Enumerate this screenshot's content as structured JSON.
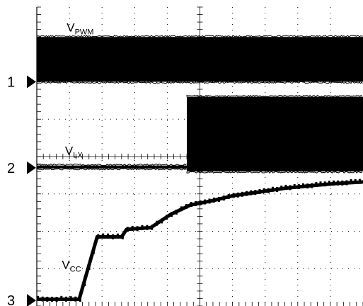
{
  "chart_data": {
    "type": "line",
    "title": "",
    "xlabel": "",
    "ylabel": "",
    "grid": true,
    "grid_style": "dotted",
    "divisions": {
      "x": 10,
      "y": 8
    },
    "xlim": [
      0,
      10
    ],
    "ylim": [
      0,
      8
    ],
    "colors": {
      "trace": "#000000",
      "grid": "#000000",
      "background": "#ffffff"
    },
    "channels": [
      {
        "number": "1",
        "ground_div": 6.0
      },
      {
        "number": "2",
        "ground_div": 3.7
      },
      {
        "number": "3",
        "ground_div": 0.15
      }
    ],
    "series": [
      {
        "name": "PWM",
        "label_main": "V",
        "label_sub": "PWM",
        "style": "switching",
        "segments": [
          {
            "x_start": 0,
            "x_end": 10,
            "low": 6.0,
            "high": 7.2
          }
        ]
      },
      {
        "name": "LX",
        "label_main": "V",
        "label_sub": "LX",
        "style": "switching",
        "baseline": 3.7,
        "segments": [
          {
            "x_start": 0,
            "x_end": 4.6,
            "low": 3.68,
            "high": 3.76
          },
          {
            "x_start": 4.6,
            "x_end": 10,
            "low": 3.6,
            "high": 5.6
          }
        ]
      },
      {
        "name": "CC",
        "label_main": "V",
        "label_sub": "CC",
        "style": "line",
        "x": [
          0,
          1.3,
          1.85,
          2.6,
          2.75,
          3.5,
          4.1,
          4.7,
          5.4,
          6.0,
          6.8,
          7.6,
          8.4,
          9.2,
          10.0
        ],
        "y": [
          0.18,
          0.18,
          1.85,
          1.85,
          2.05,
          2.1,
          2.45,
          2.7,
          2.82,
          2.95,
          3.05,
          3.15,
          3.22,
          3.28,
          3.32
        ]
      }
    ]
  }
}
